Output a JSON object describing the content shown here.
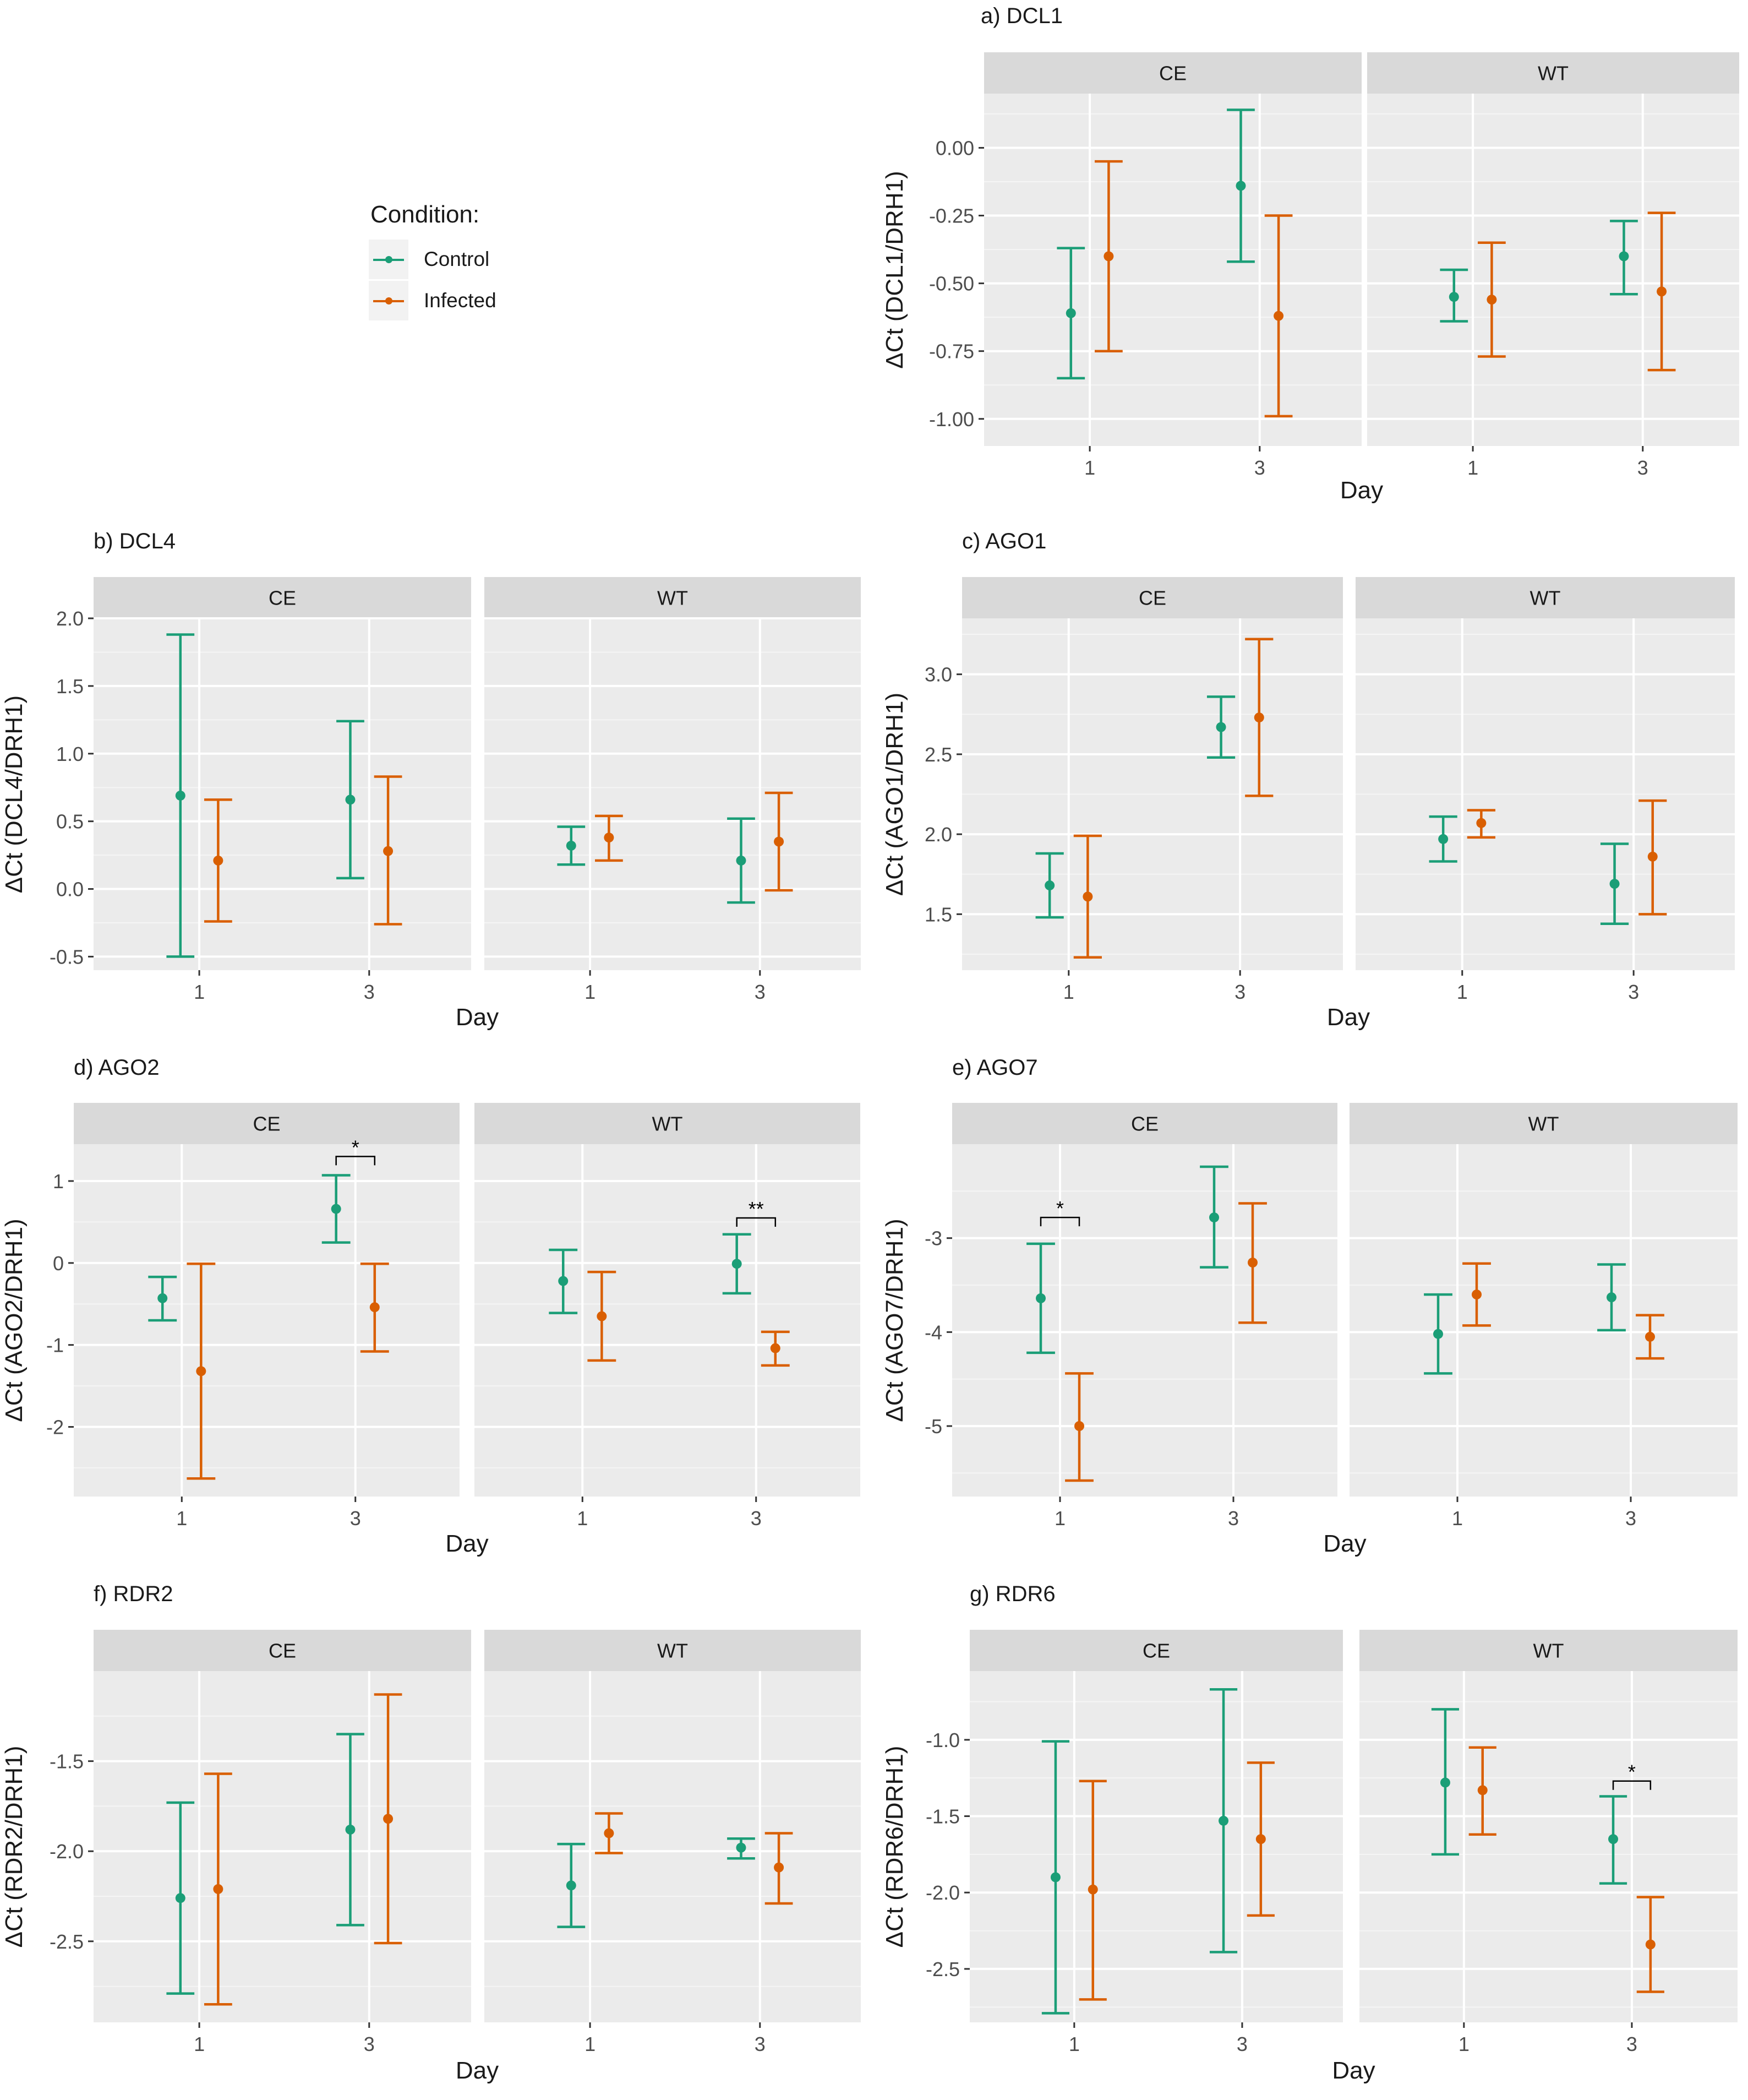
{
  "legend": {
    "title": "Condition:",
    "items": [
      {
        "label": "Control",
        "color": "#1b9e77"
      },
      {
        "label": "Infected",
        "color": "#d95f02"
      }
    ]
  },
  "chart_data": [
    {
      "id": "dcl1",
      "type": "scatter",
      "title": "a) DCL1",
      "xlabel": "Day",
      "ylabel": "ΔCt (DCL1/DRH1)",
      "facets": [
        "CE",
        "WT"
      ],
      "x_ticks": [
        "1",
        "3"
      ],
      "ylim": [
        -1.1,
        0.2
      ],
      "yticks": [
        0.0,
        -0.25,
        -0.5,
        -0.75,
        -1.0
      ],
      "ytick_labels": [
        "0.00",
        "-0.25",
        "-0.50",
        "-0.75",
        "-1.00"
      ],
      "series": [
        {
          "name": "Control",
          "points": [
            {
              "facet": "CE",
              "day": "1",
              "mean": -0.61,
              "low": -0.85,
              "high": -0.37
            },
            {
              "facet": "CE",
              "day": "3",
              "mean": -0.14,
              "low": -0.42,
              "high": 0.14
            },
            {
              "facet": "WT",
              "day": "1",
              "mean": -0.55,
              "low": -0.64,
              "high": -0.45
            },
            {
              "facet": "WT",
              "day": "3",
              "mean": -0.4,
              "low": -0.54,
              "high": -0.27
            }
          ]
        },
        {
          "name": "Infected",
          "points": [
            {
              "facet": "CE",
              "day": "1",
              "mean": -0.4,
              "low": -0.75,
              "high": -0.05
            },
            {
              "facet": "CE",
              "day": "3",
              "mean": -0.62,
              "low": -0.99,
              "high": -0.25
            },
            {
              "facet": "WT",
              "day": "1",
              "mean": -0.56,
              "low": -0.77,
              "high": -0.35
            },
            {
              "facet": "WT",
              "day": "3",
              "mean": -0.53,
              "low": -0.82,
              "high": -0.24
            }
          ]
        }
      ],
      "annotations": []
    },
    {
      "id": "dcl4",
      "type": "scatter",
      "title": "b) DCL4",
      "xlabel": "Day",
      "ylabel": "ΔCt (DCL4/DRH1)",
      "facets": [
        "CE",
        "WT"
      ],
      "x_ticks": [
        "1",
        "3"
      ],
      "ylim": [
        -0.6,
        2.0
      ],
      "yticks": [
        2.0,
        1.5,
        1.0,
        0.5,
        0.0,
        -0.5
      ],
      "ytick_labels": [
        "2.0",
        "1.5",
        "1.0",
        "0.5",
        "0.0",
        "-0.5"
      ],
      "series": [
        {
          "name": "Control",
          "points": [
            {
              "facet": "CE",
              "day": "1",
              "mean": 0.69,
              "low": -0.5,
              "high": 1.88
            },
            {
              "facet": "CE",
              "day": "3",
              "mean": 0.66,
              "low": 0.08,
              "high": 1.24
            },
            {
              "facet": "WT",
              "day": "1",
              "mean": 0.32,
              "low": 0.18,
              "high": 0.46
            },
            {
              "facet": "WT",
              "day": "3",
              "mean": 0.21,
              "low": -0.1,
              "high": 0.52
            }
          ]
        },
        {
          "name": "Infected",
          "points": [
            {
              "facet": "CE",
              "day": "1",
              "mean": 0.21,
              "low": -0.24,
              "high": 0.66
            },
            {
              "facet": "CE",
              "day": "3",
              "mean": 0.28,
              "low": -0.26,
              "high": 0.83
            },
            {
              "facet": "WT",
              "day": "1",
              "mean": 0.38,
              "low": 0.21,
              "high": 0.54
            },
            {
              "facet": "WT",
              "day": "3",
              "mean": 0.35,
              "low": -0.01,
              "high": 0.71
            }
          ]
        }
      ],
      "annotations": []
    },
    {
      "id": "ago1",
      "type": "scatter",
      "title": "c) AGO1",
      "xlabel": "Day",
      "ylabel": "ΔCt (AGO1/DRH1)",
      "facets": [
        "CE",
        "WT"
      ],
      "x_ticks": [
        "1",
        "3"
      ],
      "ylim": [
        1.15,
        3.35
      ],
      "yticks": [
        3.0,
        2.5,
        2.0,
        1.5
      ],
      "ytick_labels": [
        "3.0",
        "2.5",
        "2.0",
        "1.5"
      ],
      "series": [
        {
          "name": "Control",
          "points": [
            {
              "facet": "CE",
              "day": "1",
              "mean": 1.68,
              "low": 1.48,
              "high": 1.88
            },
            {
              "facet": "CE",
              "day": "3",
              "mean": 2.67,
              "low": 2.48,
              "high": 2.86
            },
            {
              "facet": "WT",
              "day": "1",
              "mean": 1.97,
              "low": 1.83,
              "high": 2.11
            },
            {
              "facet": "WT",
              "day": "3",
              "mean": 1.69,
              "low": 1.44,
              "high": 1.94
            }
          ]
        },
        {
          "name": "Infected",
          "points": [
            {
              "facet": "CE",
              "day": "1",
              "mean": 1.61,
              "low": 1.23,
              "high": 1.99
            },
            {
              "facet": "CE",
              "day": "3",
              "mean": 2.73,
              "low": 2.24,
              "high": 3.22
            },
            {
              "facet": "WT",
              "day": "1",
              "mean": 2.07,
              "low": 1.98,
              "high": 2.15
            },
            {
              "facet": "WT",
              "day": "3",
              "mean": 1.86,
              "low": 1.5,
              "high": 2.21
            }
          ]
        }
      ],
      "annotations": []
    },
    {
      "id": "ago2",
      "type": "scatter",
      "title": "d) AGO2",
      "xlabel": "Day",
      "ylabel": "ΔCt (AGO2/DRH1)",
      "facets": [
        "CE",
        "WT"
      ],
      "x_ticks": [
        "1",
        "3"
      ],
      "ylim": [
        -2.85,
        1.45
      ],
      "yticks": [
        1,
        0,
        -1,
        -2
      ],
      "ytick_labels": [
        "1",
        "0",
        "-1",
        "-2"
      ],
      "series": [
        {
          "name": "Control",
          "points": [
            {
              "facet": "CE",
              "day": "1",
              "mean": -0.43,
              "low": -0.7,
              "high": -0.17
            },
            {
              "facet": "CE",
              "day": "3",
              "mean": 0.66,
              "low": 0.25,
              "high": 1.07
            },
            {
              "facet": "WT",
              "day": "1",
              "mean": -0.22,
              "low": -0.61,
              "high": 0.16
            },
            {
              "facet": "WT",
              "day": "3",
              "mean": -0.01,
              "low": -0.37,
              "high": 0.35
            }
          ]
        },
        {
          "name": "Infected",
          "points": [
            {
              "facet": "CE",
              "day": "1",
              "mean": -1.32,
              "low": -2.63,
              "high": -0.01
            },
            {
              "facet": "CE",
              "day": "3",
              "mean": -0.54,
              "low": -1.08,
              "high": -0.01
            },
            {
              "facet": "WT",
              "day": "1",
              "mean": -0.65,
              "low": -1.19,
              "high": -0.11
            },
            {
              "facet": "WT",
              "day": "3",
              "mean": -1.04,
              "low": -1.25,
              "high": -0.84
            }
          ]
        }
      ],
      "annotations": [
        {
          "facet": "CE",
          "day": "3",
          "label": "*",
          "y": 1.3
        },
        {
          "facet": "WT",
          "day": "3",
          "label": "**",
          "y": 0.55
        }
      ]
    },
    {
      "id": "ago7",
      "type": "scatter",
      "title": "e) AGO7",
      "xlabel": "Day",
      "ylabel": "ΔCt (AGO7/DRH1)",
      "facets": [
        "CE",
        "WT"
      ],
      "x_ticks": [
        "1",
        "3"
      ],
      "ylim": [
        -5.75,
        -2.0
      ],
      "yticks": [
        -3,
        -4,
        -5
      ],
      "ytick_labels": [
        "-3",
        "-4",
        "-5"
      ],
      "series": [
        {
          "name": "Control",
          "points": [
            {
              "facet": "CE",
              "day": "1",
              "mean": -3.64,
              "low": -4.22,
              "high": -3.06
            },
            {
              "facet": "CE",
              "day": "3",
              "mean": -2.78,
              "low": -3.31,
              "high": -2.24
            },
            {
              "facet": "WT",
              "day": "1",
              "mean": -4.02,
              "low": -4.44,
              "high": -3.6
            },
            {
              "facet": "WT",
              "day": "3",
              "mean": -3.63,
              "low": -3.98,
              "high": -3.28
            }
          ]
        },
        {
          "name": "Infected",
          "points": [
            {
              "facet": "CE",
              "day": "1",
              "mean": -5.0,
              "low": -5.58,
              "high": -4.44
            },
            {
              "facet": "CE",
              "day": "3",
              "mean": -3.26,
              "low": -3.9,
              "high": -2.63
            },
            {
              "facet": "WT",
              "day": "1",
              "mean": -3.6,
              "low": -3.93,
              "high": -3.27
            },
            {
              "facet": "WT",
              "day": "3",
              "mean": -4.05,
              "low": -4.28,
              "high": -3.82
            }
          ]
        }
      ],
      "annotations": [
        {
          "facet": "CE",
          "day": "1",
          "label": "*",
          "y": -2.78
        }
      ]
    },
    {
      "id": "rdr2",
      "type": "scatter",
      "title": "f) RDR2",
      "xlabel": "Day",
      "ylabel": "ΔCt (RDR2/DRH1)",
      "facets": [
        "CE",
        "WT"
      ],
      "x_ticks": [
        "1",
        "3"
      ],
      "ylim": [
        -2.95,
        -1.0
      ],
      "yticks": [
        -1.5,
        -2.0,
        -2.5
      ],
      "ytick_labels": [
        "-1.5",
        "-2.0",
        "-2.5"
      ],
      "series": [
        {
          "name": "Control",
          "points": [
            {
              "facet": "CE",
              "day": "1",
              "mean": -2.26,
              "low": -2.79,
              "high": -1.73
            },
            {
              "facet": "CE",
              "day": "3",
              "mean": -1.88,
              "low": -2.41,
              "high": -1.35
            },
            {
              "facet": "WT",
              "day": "1",
              "mean": -2.19,
              "low": -2.42,
              "high": -1.96
            },
            {
              "facet": "WT",
              "day": "3",
              "mean": -1.98,
              "low": -2.04,
              "high": -1.93
            }
          ]
        },
        {
          "name": "Infected",
          "points": [
            {
              "facet": "CE",
              "day": "1",
              "mean": -2.21,
              "low": -2.85,
              "high": -1.57
            },
            {
              "facet": "CE",
              "day": "3",
              "mean": -1.82,
              "low": -2.51,
              "high": -1.13
            },
            {
              "facet": "WT",
              "day": "1",
              "mean": -1.9,
              "low": -2.01,
              "high": -1.79
            },
            {
              "facet": "WT",
              "day": "3",
              "mean": -2.09,
              "low": -2.29,
              "high": -1.9
            }
          ]
        }
      ],
      "annotations": []
    },
    {
      "id": "rdr6",
      "type": "scatter",
      "title": "g) RDR6",
      "xlabel": "Day",
      "ylabel": "ΔCt (RDR6/DRH1)",
      "facets": [
        "CE",
        "WT"
      ],
      "x_ticks": [
        "1",
        "3"
      ],
      "ylim": [
        -2.85,
        -0.55
      ],
      "yticks": [
        -1.0,
        -1.5,
        -2.0,
        -2.5
      ],
      "ytick_labels": [
        "-1.0",
        "-1.5",
        "-2.0",
        "-2.5"
      ],
      "series": [
        {
          "name": "Control",
          "points": [
            {
              "facet": "CE",
              "day": "1",
              "mean": -1.9,
              "low": -2.79,
              "high": -1.01
            },
            {
              "facet": "CE",
              "day": "3",
              "mean": -1.53,
              "low": -2.39,
              "high": -0.67
            },
            {
              "facet": "WT",
              "day": "1",
              "mean": -1.28,
              "low": -1.75,
              "high": -0.8
            },
            {
              "facet": "WT",
              "day": "3",
              "mean": -1.65,
              "low": -1.94,
              "high": -1.37
            }
          ]
        },
        {
          "name": "Infected",
          "points": [
            {
              "facet": "CE",
              "day": "1",
              "mean": -1.98,
              "low": -2.7,
              "high": -1.27
            },
            {
              "facet": "CE",
              "day": "3",
              "mean": -1.65,
              "low": -2.15,
              "high": -1.15
            },
            {
              "facet": "WT",
              "day": "1",
              "mean": -1.33,
              "low": -1.62,
              "high": -1.05
            },
            {
              "facet": "WT",
              "day": "3",
              "mean": -2.34,
              "low": -2.65,
              "high": -2.03
            }
          ]
        }
      ],
      "annotations": [
        {
          "facet": "WT",
          "day": "3",
          "label": "*",
          "y": -1.27
        }
      ]
    }
  ]
}
